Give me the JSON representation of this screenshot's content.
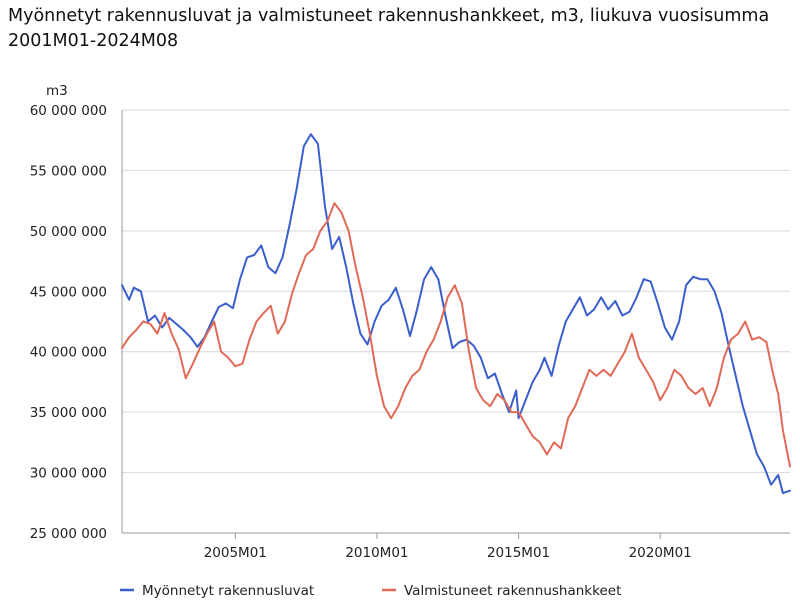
{
  "chart_data": {
    "type": "line",
    "title": "Myönnetyt rakennusluvat ja valmistuneet rakennushankkeet, m3, liukuva vuosisumma",
    "subtitle": "2001M01-2024M08",
    "ylabel": "m3",
    "ylim": [
      25000000,
      60000000
    ],
    "yticks": [
      25000000,
      30000000,
      35000000,
      40000000,
      45000000,
      50000000,
      55000000,
      60000000
    ],
    "ytick_labels": [
      "25 000 000",
      "30 000 000",
      "35 000 000",
      "40 000 000",
      "45 000 000",
      "50 000 000",
      "55 000 000",
      "60 000 000"
    ],
    "xlim": [
      "2001-01",
      "2024-08"
    ],
    "xticks": [
      "2005-01",
      "2010-01",
      "2015-01",
      "2020-01"
    ],
    "xtick_labels": [
      "2005M01",
      "2010M01",
      "2015M01",
      "2020M01"
    ],
    "grid": "horizontal",
    "legend_position": "bottom",
    "series": [
      {
        "name": "Myönnetyt rakennusluvat",
        "color": "#3a5fcd",
        "points": [
          [
            "2001-01",
            45500000
          ],
          [
            "2001-04",
            44300000
          ],
          [
            "2001-06",
            45300000
          ],
          [
            "2001-09",
            45000000
          ],
          [
            "2001-12",
            42500000
          ],
          [
            "2002-03",
            43000000
          ],
          [
            "2002-06",
            42000000
          ],
          [
            "2002-09",
            42800000
          ],
          [
            "2002-12",
            42300000
          ],
          [
            "2003-03",
            41800000
          ],
          [
            "2003-06",
            41200000
          ],
          [
            "2003-09",
            40400000
          ],
          [
            "2003-12",
            41200000
          ],
          [
            "2004-03",
            42500000
          ],
          [
            "2004-06",
            43700000
          ],
          [
            "2004-09",
            44000000
          ],
          [
            "2004-12",
            43600000
          ],
          [
            "2005-03",
            46000000
          ],
          [
            "2005-06",
            47800000
          ],
          [
            "2005-09",
            48000000
          ],
          [
            "2005-12",
            48800000
          ],
          [
            "2006-03",
            47000000
          ],
          [
            "2006-06",
            46500000
          ],
          [
            "2006-09",
            47800000
          ],
          [
            "2006-12",
            50500000
          ],
          [
            "2007-03",
            53500000
          ],
          [
            "2007-06",
            57000000
          ],
          [
            "2007-09",
            58000000
          ],
          [
            "2007-12",
            57200000
          ],
          [
            "2008-03",
            52000000
          ],
          [
            "2008-06",
            48500000
          ],
          [
            "2008-09",
            49500000
          ],
          [
            "2008-12",
            47000000
          ],
          [
            "2009-03",
            44000000
          ],
          [
            "2009-06",
            41500000
          ],
          [
            "2009-09",
            40600000
          ],
          [
            "2009-12",
            42500000
          ],
          [
            "2010-03",
            43800000
          ],
          [
            "2010-06",
            44300000
          ],
          [
            "2010-09",
            45300000
          ],
          [
            "2010-12",
            43500000
          ],
          [
            "2011-03",
            41300000
          ],
          [
            "2011-06",
            43500000
          ],
          [
            "2011-09",
            46000000
          ],
          [
            "2011-12",
            47000000
          ],
          [
            "2012-03",
            46000000
          ],
          [
            "2012-06",
            43000000
          ],
          [
            "2012-09",
            40300000
          ],
          [
            "2012-12",
            40800000
          ],
          [
            "2013-03",
            41000000
          ],
          [
            "2013-06",
            40500000
          ],
          [
            "2013-09",
            39500000
          ],
          [
            "2013-12",
            37800000
          ],
          [
            "2014-03",
            38200000
          ],
          [
            "2014-06",
            36500000
          ],
          [
            "2014-09",
            35000000
          ],
          [
            "2014-12",
            36800000
          ],
          [
            "2015-01",
            34500000
          ],
          [
            "2015-04",
            36000000
          ],
          [
            "2015-07",
            37500000
          ],
          [
            "2015-10",
            38500000
          ],
          [
            "2015-12",
            39500000
          ],
          [
            "2016-03",
            38000000
          ],
          [
            "2016-06",
            40500000
          ],
          [
            "2016-09",
            42500000
          ],
          [
            "2016-12",
            43500000
          ],
          [
            "2017-03",
            44500000
          ],
          [
            "2017-06",
            43000000
          ],
          [
            "2017-09",
            43500000
          ],
          [
            "2017-12",
            44500000
          ],
          [
            "2018-03",
            43500000
          ],
          [
            "2018-06",
            44200000
          ],
          [
            "2018-09",
            43000000
          ],
          [
            "2018-12",
            43300000
          ],
          [
            "2019-03",
            44500000
          ],
          [
            "2019-06",
            46000000
          ],
          [
            "2019-09",
            45800000
          ],
          [
            "2019-12",
            44000000
          ],
          [
            "2020-03",
            42000000
          ],
          [
            "2020-06",
            41000000
          ],
          [
            "2020-09",
            42500000
          ],
          [
            "2020-12",
            45500000
          ],
          [
            "2021-03",
            46200000
          ],
          [
            "2021-06",
            46000000
          ],
          [
            "2021-09",
            46000000
          ],
          [
            "2021-12",
            45000000
          ],
          [
            "2022-03",
            43200000
          ],
          [
            "2022-06",
            40500000
          ],
          [
            "2022-09",
            38000000
          ],
          [
            "2022-12",
            35500000
          ],
          [
            "2023-03",
            33500000
          ],
          [
            "2023-06",
            31500000
          ],
          [
            "2023-09",
            30500000
          ],
          [
            "2023-12",
            29000000
          ],
          [
            "2024-03",
            29800000
          ],
          [
            "2024-05",
            28300000
          ],
          [
            "2024-08",
            28500000
          ]
        ]
      },
      {
        "name": "Valmistuneet rakennushankkeet",
        "color": "#e06a57",
        "points": [
          [
            "2001-01",
            40300000
          ],
          [
            "2001-04",
            41200000
          ],
          [
            "2001-07",
            41800000
          ],
          [
            "2001-10",
            42500000
          ],
          [
            "2002-01",
            42300000
          ],
          [
            "2002-04",
            41500000
          ],
          [
            "2002-07",
            43200000
          ],
          [
            "2002-10",
            41500000
          ],
          [
            "2003-01",
            40200000
          ],
          [
            "2003-04",
            37800000
          ],
          [
            "2003-07",
            39000000
          ],
          [
            "2003-10",
            40300000
          ],
          [
            "2004-01",
            41500000
          ],
          [
            "2004-04",
            42500000
          ],
          [
            "2004-07",
            40000000
          ],
          [
            "2004-10",
            39500000
          ],
          [
            "2005-01",
            38800000
          ],
          [
            "2005-04",
            39000000
          ],
          [
            "2005-07",
            41000000
          ],
          [
            "2005-10",
            42500000
          ],
          [
            "2006-01",
            43200000
          ],
          [
            "2006-04",
            43800000
          ],
          [
            "2006-07",
            41500000
          ],
          [
            "2006-10",
            42500000
          ],
          [
            "2007-01",
            44800000
          ],
          [
            "2007-04",
            46500000
          ],
          [
            "2007-07",
            48000000
          ],
          [
            "2007-10",
            48500000
          ],
          [
            "2008-01",
            50000000
          ],
          [
            "2008-04",
            50800000
          ],
          [
            "2008-07",
            52300000
          ],
          [
            "2008-10",
            51500000
          ],
          [
            "2009-01",
            50000000
          ],
          [
            "2009-04",
            47000000
          ],
          [
            "2009-07",
            44500000
          ],
          [
            "2009-10",
            41500000
          ],
          [
            "2010-01",
            38000000
          ],
          [
            "2010-04",
            35500000
          ],
          [
            "2010-07",
            34500000
          ],
          [
            "2010-10",
            35500000
          ],
          [
            "2011-01",
            37000000
          ],
          [
            "2011-04",
            38000000
          ],
          [
            "2011-07",
            38500000
          ],
          [
            "2011-10",
            40000000
          ],
          [
            "2012-01",
            41000000
          ],
          [
            "2012-04",
            42500000
          ],
          [
            "2012-07",
            44500000
          ],
          [
            "2012-10",
            45500000
          ],
          [
            "2013-01",
            44000000
          ],
          [
            "2013-04",
            40000000
          ],
          [
            "2013-07",
            37000000
          ],
          [
            "2013-10",
            36000000
          ],
          [
            "2014-01",
            35500000
          ],
          [
            "2014-04",
            36500000
          ],
          [
            "2014-07",
            36000000
          ],
          [
            "2014-10",
            35000000
          ],
          [
            "2015-01",
            35000000
          ],
          [
            "2015-04",
            34000000
          ],
          [
            "2015-07",
            33000000
          ],
          [
            "2015-10",
            32500000
          ],
          [
            "2016-01",
            31500000
          ],
          [
            "2016-04",
            32500000
          ],
          [
            "2016-07",
            32000000
          ],
          [
            "2016-10",
            34500000
          ],
          [
            "2017-01",
            35500000
          ],
          [
            "2017-04",
            37000000
          ],
          [
            "2017-07",
            38500000
          ],
          [
            "2017-10",
            38000000
          ],
          [
            "2018-01",
            38500000
          ],
          [
            "2018-04",
            38000000
          ],
          [
            "2018-07",
            39000000
          ],
          [
            "2018-10",
            40000000
          ],
          [
            "2019-01",
            41500000
          ],
          [
            "2019-04",
            39500000
          ],
          [
            "2019-07",
            38500000
          ],
          [
            "2019-10",
            37500000
          ],
          [
            "2020-01",
            36000000
          ],
          [
            "2020-04",
            37000000
          ],
          [
            "2020-07",
            38500000
          ],
          [
            "2020-10",
            38000000
          ],
          [
            "2021-01",
            37000000
          ],
          [
            "2021-04",
            36500000
          ],
          [
            "2021-07",
            37000000
          ],
          [
            "2021-10",
            35500000
          ],
          [
            "2022-01",
            37000000
          ],
          [
            "2022-04",
            39500000
          ],
          [
            "2022-07",
            41000000
          ],
          [
            "2022-10",
            41500000
          ],
          [
            "2023-01",
            42500000
          ],
          [
            "2023-04",
            41000000
          ],
          [
            "2023-07",
            41200000
          ],
          [
            "2023-10",
            40800000
          ],
          [
            "2024-01",
            38000000
          ],
          [
            "2024-03",
            36500000
          ],
          [
            "2024-05",
            33500000
          ],
          [
            "2024-08",
            30500000
          ]
        ]
      }
    ]
  }
}
